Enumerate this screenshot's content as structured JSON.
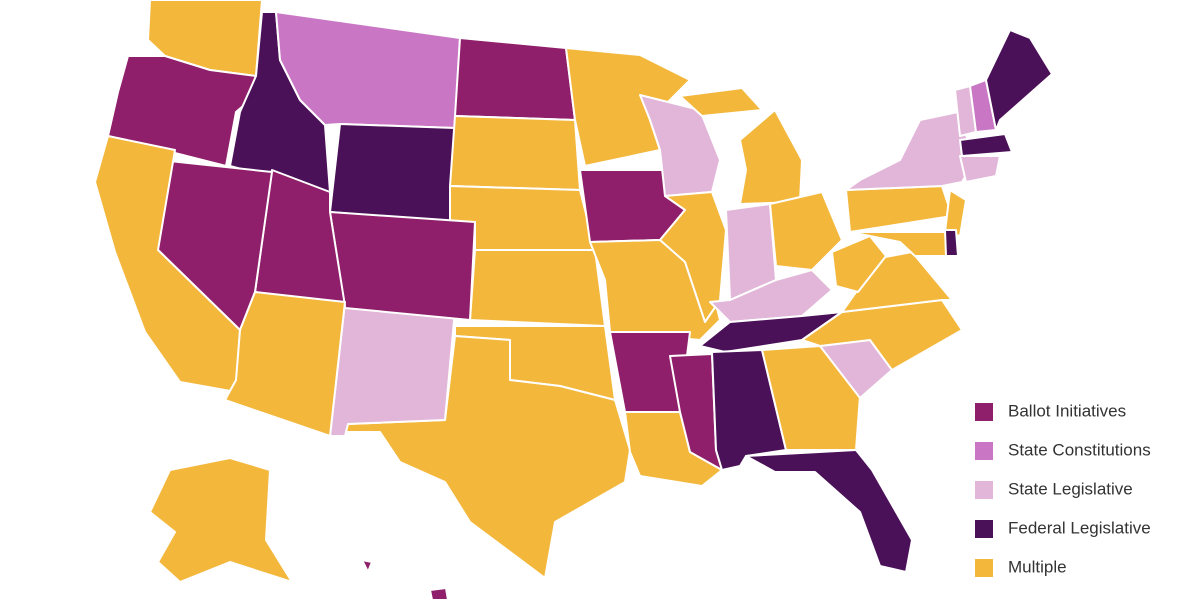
{
  "legend": {
    "items": [
      {
        "label": "Ballot Initiatives",
        "color": "#8f1f6a"
      },
      {
        "label": "State Constitutions",
        "color": "#c977c4"
      },
      {
        "label": "State Legislative",
        "color": "#e2b6d8"
      },
      {
        "label": "Federal Legislative",
        "color": "#4a1058"
      },
      {
        "label": "Multiple",
        "color": "#f3b73c"
      }
    ]
  }
}
